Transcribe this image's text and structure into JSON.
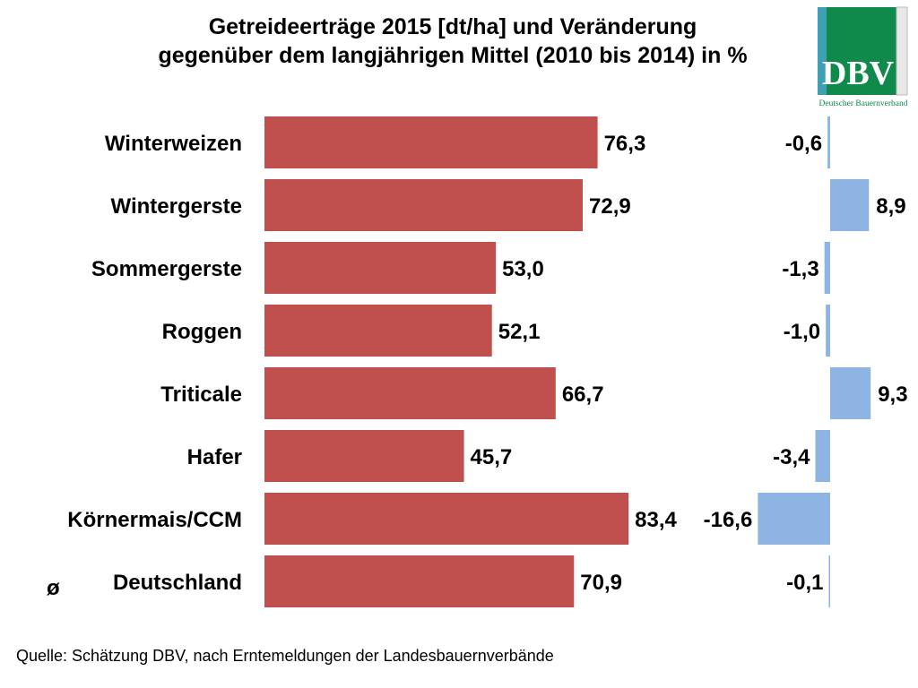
{
  "title": {
    "line1": "Getreideerträge 2015 [dt/ha] und Veränderung",
    "line2": "gegenüber dem langjährigen Mittel (2010 bis 2014) in %"
  },
  "logo": {
    "text": "DBV",
    "subtext": "Deutscher Bauernverband",
    "colors": {
      "green": "#0f8a4a",
      "teal": "#3fa0b4",
      "white": "#ffffff"
    }
  },
  "source": "Quelle: Schätzung DBV, nach Erntemeldungen der Landesbauernverbände",
  "chart_data": {
    "type": "bar",
    "orientation": "horizontal",
    "categories": [
      "Winterweizen",
      "Wintergerste",
      "Sommergerste",
      "Roggen",
      "Triticale",
      "Hafer",
      "Körnermais/CCM",
      "Deutschland"
    ],
    "category_prefix": {
      "Deutschland": "ø"
    },
    "series": [
      {
        "values": [
          76.3,
          72.9,
          53.0,
          52.1,
          66.7,
          45.7,
          83.4,
          70.9
        ],
        "labels": [
          "76,3",
          "72,9",
          "53,0",
          "52,1",
          "66,7",
          "45,7",
          "83,4",
          "70,9"
        ],
        "color": "#c0504d"
      },
      {
        "values": [
          -0.6,
          8.9,
          -1.3,
          -1.0,
          9.3,
          -3.4,
          -16.6,
          -0.1
        ],
        "labels": [
          "-0,6",
          "8,9",
          "-1,3",
          "-1,0",
          "9,3",
          "-3,4",
          "-16,6",
          "-0,1"
        ],
        "color": "#8db4e2"
      }
    ],
    "grid": false,
    "legend": "none"
  }
}
